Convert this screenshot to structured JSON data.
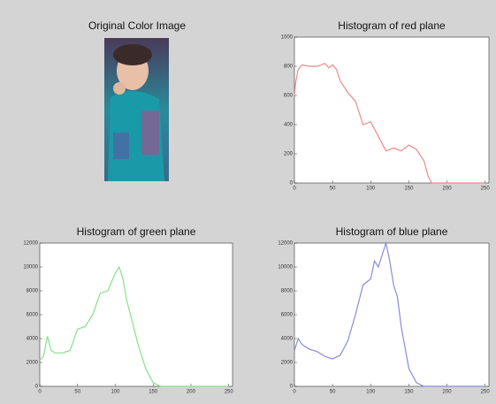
{
  "image": {
    "title": "Original Color Image"
  },
  "chart_data": [
    {
      "type": "line",
      "title": "Histogram of red plane",
      "xlim": [
        0,
        255
      ],
      "xticks": [
        0,
        50,
        100,
        150,
        200,
        250
      ],
      "ylim": [
        0,
        1000
      ],
      "yticks": [
        0,
        200,
        400,
        600,
        800,
        1000
      ],
      "series": [
        {
          "color": "#f08a8a",
          "x": [
            0,
            2,
            5,
            10,
            20,
            30,
            40,
            45,
            50,
            55,
            60,
            70,
            80,
            90,
            100,
            110,
            120,
            130,
            140,
            150,
            160,
            170,
            175,
            180,
            190,
            250
          ],
          "values": [
            600,
            700,
            780,
            810,
            800,
            800,
            820,
            790,
            810,
            780,
            700,
            620,
            560,
            400,
            420,
            320,
            220,
            240,
            220,
            260,
            230,
            150,
            50,
            0,
            0,
            0
          ]
        }
      ]
    },
    {
      "type": "line",
      "title": "Histogram of green plane",
      "xlim": [
        0,
        255
      ],
      "xticks": [
        0,
        50,
        100,
        150,
        200,
        250
      ],
      "ylim": [
        0,
        12000
      ],
      "yticks": [
        0,
        2000,
        4000,
        6000,
        8000,
        10000,
        12000
      ],
      "series": [
        {
          "color": "#86e08a",
          "x": [
            0,
            5,
            10,
            15,
            20,
            30,
            40,
            50,
            60,
            70,
            80,
            90,
            100,
            105,
            110,
            115,
            120,
            130,
            140,
            150,
            160,
            250
          ],
          "values": [
            2200,
            2500,
            4200,
            3000,
            2800,
            2800,
            3000,
            4800,
            5000,
            6000,
            7800,
            8000,
            9500,
            10000,
            9000,
            7200,
            6000,
            3500,
            1500,
            300,
            0,
            0
          ]
        }
      ]
    },
    {
      "type": "line",
      "title": "Histogram of blue plane",
      "xlim": [
        0,
        255
      ],
      "xticks": [
        0,
        50,
        100,
        150,
        200,
        250
      ],
      "ylim": [
        0,
        12000
      ],
      "yticks": [
        0,
        2000,
        4000,
        6000,
        8000,
        10000,
        12000
      ],
      "series": [
        {
          "color": "#8a8ae0",
          "x": [
            0,
            5,
            10,
            20,
            30,
            40,
            50,
            60,
            70,
            80,
            90,
            100,
            105,
            110,
            115,
            120,
            125,
            130,
            135,
            140,
            150,
            160,
            170,
            250
          ],
          "values": [
            3000,
            4000,
            3500,
            3100,
            2900,
            2500,
            2300,
            2600,
            3800,
            6000,
            8500,
            9000,
            10500,
            10000,
            11000,
            12000,
            10500,
            8500,
            7500,
            5000,
            1500,
            300,
            0,
            0
          ]
        }
      ]
    }
  ]
}
